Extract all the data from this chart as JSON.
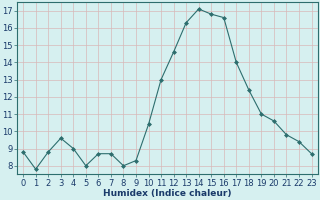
{
  "x": [
    0,
    1,
    2,
    3,
    4,
    5,
    6,
    7,
    8,
    9,
    10,
    11,
    12,
    13,
    14,
    15,
    16,
    17,
    18,
    19,
    20,
    21,
    22,
    23
  ],
  "y": [
    8.8,
    7.8,
    8.8,
    9.6,
    9.0,
    8.0,
    8.7,
    8.7,
    8.0,
    8.3,
    10.4,
    13.0,
    14.6,
    16.3,
    17.1,
    16.8,
    16.6,
    14.0,
    12.4,
    11.0,
    10.6,
    9.8,
    9.4,
    8.7
  ],
  "line_color": "#2d6e6e",
  "marker": "D",
  "marker_size": 2,
  "bg_color": "#d6f0f0",
  "grid_color": "#c0d0d0",
  "xlabel": "Humidex (Indice chaleur)",
  "ylim": [
    7.5,
    17.5
  ],
  "xlim": [
    -0.5,
    23.5
  ],
  "yticks": [
    8,
    9,
    10,
    11,
    12,
    13,
    14,
    15,
    16,
    17
  ],
  "xticks": [
    0,
    1,
    2,
    3,
    4,
    5,
    6,
    7,
    8,
    9,
    10,
    11,
    12,
    13,
    14,
    15,
    16,
    17,
    18,
    19,
    20,
    21,
    22,
    23
  ],
  "xlabel_fontsize": 6.5,
  "tick_fontsize": 6,
  "label_color": "#1a3a6a",
  "spine_color": "#2d6e6e"
}
